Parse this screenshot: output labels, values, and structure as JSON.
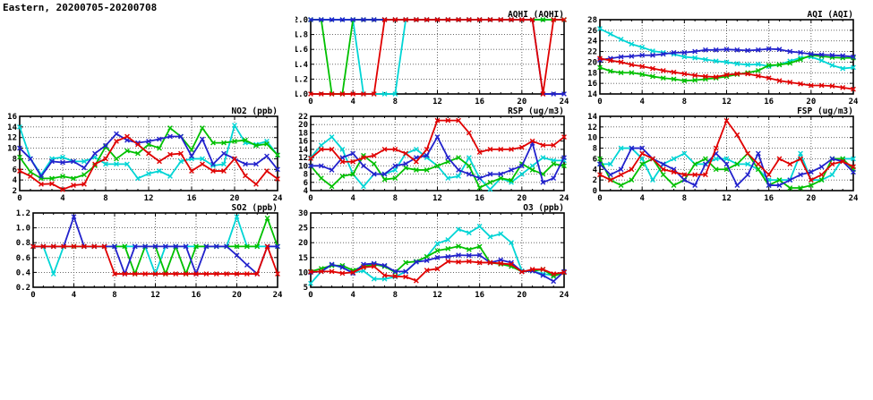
{
  "header": {
    "title": "Eastern, 20200705-20200708"
  },
  "colors": {
    "red": "#e00000",
    "blue": "#2222cc",
    "green": "#00c000",
    "cyan": "#00d5d5"
  },
  "chart_data": [
    {
      "id": "aqhi",
      "type": "line",
      "title": "AQHI (AQHI)",
      "x_range": [
        0,
        24
      ],
      "x_step": 1,
      "x_major_ticks": [
        0,
        4,
        8,
        12,
        16,
        20,
        24
      ],
      "y_range": [
        1.0,
        2.0
      ],
      "y_ticks": [
        1.0,
        1.2,
        1.4,
        1.6,
        1.8,
        2.0
      ],
      "y_tick_labels": [
        "1.0",
        "1.2",
        "1.4",
        "1.6",
        "1.8",
        "2.0"
      ],
      "grid": true,
      "legend": "none",
      "series": [
        {
          "name": "cyan",
          "color": "#00d5d5",
          "values": [
            2,
            2,
            2,
            2,
            2,
            1,
            1,
            1,
            1,
            2,
            2,
            2,
            2,
            2,
            2,
            2,
            2,
            2,
            2,
            2,
            2,
            2,
            2,
            2,
            2
          ]
        },
        {
          "name": "green",
          "color": "#00c000",
          "values": [
            2,
            2,
            1,
            1,
            2,
            2,
            2,
            2,
            2,
            2,
            2,
            2,
            2,
            2,
            2,
            2,
            2,
            2,
            2,
            2,
            2,
            2,
            2,
            2,
            2
          ]
        },
        {
          "name": "blue",
          "color": "#2222cc",
          "values": [
            2,
            2,
            2,
            2,
            2,
            2,
            2,
            2,
            2,
            2,
            2,
            2,
            2,
            2,
            2,
            2,
            2,
            2,
            2,
            2,
            2,
            2,
            1,
            1,
            1
          ]
        },
        {
          "name": "red",
          "color": "#e00000",
          "values": [
            1,
            1,
            1,
            1,
            1,
            1,
            1,
            2,
            2,
            2,
            2,
            2,
            2,
            2,
            2,
            2,
            2,
            2,
            2,
            2,
            2,
            2,
            1,
            2,
            2
          ]
        }
      ]
    },
    {
      "id": "aqi",
      "type": "line",
      "title": "AQI (AQI)",
      "x_range": [
        0,
        24
      ],
      "x_step": 1,
      "x_major_ticks": [
        0,
        4,
        8,
        12,
        16,
        20,
        24
      ],
      "y_range": [
        14,
        28
      ],
      "y_ticks": [
        14,
        16,
        18,
        20,
        22,
        24,
        26,
        28
      ],
      "y_tick_labels": [
        "14",
        "16",
        "18",
        "20",
        "22",
        "24",
        "26",
        "28"
      ],
      "grid": true,
      "legend": "none",
      "series": [
        {
          "name": "cyan",
          "color": "#00d5d5",
          "values": [
            26.3,
            25.3,
            24.3,
            23.4,
            22.8,
            22.1,
            21.8,
            21.5,
            21.0,
            20.8,
            20.5,
            20.2,
            20.0,
            19.7,
            19.5,
            19.6,
            19.2,
            19.5,
            20.2,
            20.8,
            21.0,
            20.3,
            19.4,
            18.8,
            19.0
          ]
        },
        {
          "name": "green",
          "color": "#00c000",
          "values": [
            19.0,
            18.3,
            18.0,
            18.0,
            17.7,
            17.3,
            17.0,
            16.8,
            16.5,
            16.6,
            16.8,
            17.0,
            17.3,
            17.7,
            18.0,
            18.4,
            19.4,
            19.5,
            19.8,
            20.5,
            21.3,
            21.1,
            20.9,
            20.8,
            20.8
          ]
        },
        {
          "name": "blue",
          "color": "#2222cc",
          "values": [
            20.4,
            20.7,
            21.0,
            21.1,
            21.3,
            21.3,
            21.5,
            21.8,
            21.8,
            22.0,
            22.3,
            22.3,
            22.4,
            22.3,
            22.2,
            22.3,
            22.5,
            22.4,
            22.0,
            21.8,
            21.5,
            21.4,
            21.3,
            21.2,
            21.0
          ]
        },
        {
          "name": "red",
          "color": "#e00000",
          "values": [
            20.7,
            20.3,
            20.0,
            19.5,
            19.2,
            18.8,
            18.4,
            18.1,
            17.8,
            17.5,
            17.3,
            17.2,
            17.6,
            17.8,
            17.8,
            17.4,
            17.0,
            16.5,
            16.2,
            15.9,
            15.6,
            15.6,
            15.5,
            15.2,
            14.9
          ]
        }
      ]
    },
    {
      "id": "no2",
      "type": "line",
      "title": "NO2 (ppb)",
      "x_range": [
        0,
        24
      ],
      "x_step": 1,
      "x_major_ticks": [
        0,
        4,
        8,
        12,
        16,
        20,
        24
      ],
      "y_range": [
        2,
        16
      ],
      "y_ticks": [
        2,
        4,
        6,
        8,
        10,
        12,
        14,
        16
      ],
      "y_tick_labels": [
        "2",
        "4",
        "6",
        "8",
        "10",
        "12",
        "14",
        "16"
      ],
      "grid": true,
      "legend": "none",
      "series": [
        {
          "name": "cyan",
          "color": "#00d5d5",
          "values": [
            14,
            8,
            5,
            8,
            8.3,
            7.5,
            7.5,
            8.3,
            7,
            7,
            7,
            4.3,
            5.2,
            5.7,
            4.7,
            7.5,
            8,
            8,
            6.7,
            7,
            14.3,
            11,
            10.7,
            11.3,
            8.7
          ]
        },
        {
          "name": "green",
          "color": "#00c000",
          "values": [
            8.3,
            5.5,
            4.3,
            4.3,
            4.7,
            4.3,
            5,
            6.7,
            10.3,
            8,
            9.5,
            9,
            10.7,
            10,
            13.8,
            12.2,
            9.7,
            13.8,
            11,
            11,
            11.3,
            11.5,
            10.5,
            10.8,
            8.7
          ]
        },
        {
          "name": "blue",
          "color": "#2222cc",
          "values": [
            10,
            8,
            4.7,
            7.5,
            7.3,
            7.5,
            6.3,
            9,
            10.5,
            12.7,
            11.5,
            11,
            11.3,
            11.7,
            12.2,
            12.2,
            8.5,
            11.7,
            7,
            9,
            8,
            7,
            7,
            8.5,
            6
          ]
        },
        {
          "name": "red",
          "color": "#e00000",
          "values": [
            5.7,
            4.7,
            3.2,
            3.3,
            2.2,
            3,
            3.2,
            7,
            8,
            11.3,
            12.2,
            10.7,
            9,
            7.5,
            8.8,
            9,
            5.7,
            7,
            5.7,
            5.7,
            8,
            4.8,
            3.2,
            5.7,
            4.2
          ]
        }
      ]
    },
    {
      "id": "rsp",
      "type": "line",
      "title": "RSP (ug/m3)",
      "x_range": [
        0,
        24
      ],
      "x_step": 1,
      "x_major_ticks": [
        0,
        4,
        8,
        12,
        16,
        20,
        24
      ],
      "y_range": [
        4,
        22
      ],
      "y_ticks": [
        4,
        6,
        8,
        10,
        12,
        14,
        16,
        18,
        20,
        22
      ],
      "y_tick_labels": [
        "4",
        "6",
        "8",
        "10",
        "12",
        "14",
        "16",
        "18",
        "20",
        "22"
      ],
      "grid": true,
      "legend": "none",
      "series": [
        {
          "name": "cyan",
          "color": "#00d5d5",
          "values": [
            12,
            15,
            17,
            14,
            8,
            5,
            8,
            8,
            9,
            13,
            14,
            12,
            10,
            7,
            7.5,
            12,
            7,
            4.3,
            7,
            6,
            8,
            10,
            12,
            11.3,
            11.3
          ]
        },
        {
          "name": "green",
          "color": "#00c000",
          "values": [
            10,
            7,
            5,
            7.5,
            8,
            12.5,
            10.5,
            6.7,
            7,
            9.5,
            9,
            9,
            10,
            11,
            12,
            10,
            4.7,
            6,
            7,
            6.5,
            10.5,
            9,
            8,
            10.5,
            10
          ]
        },
        {
          "name": "blue",
          "color": "#2222cc",
          "values": [
            10,
            10,
            9,
            12,
            13,
            10,
            8,
            8,
            10,
            10.5,
            12,
            12.5,
            17,
            12,
            9,
            8,
            7,
            8,
            8,
            9,
            10,
            15.5,
            6,
            7,
            12
          ]
        },
        {
          "name": "red",
          "color": "#e00000",
          "values": [
            11.8,
            14,
            14,
            11,
            11,
            12,
            12.5,
            14,
            14,
            13,
            11,
            14,
            21,
            21,
            21,
            18,
            13.3,
            14,
            14,
            14,
            14.5,
            16,
            15,
            15,
            17
          ]
        }
      ]
    },
    {
      "id": "fsp",
      "type": "line",
      "title": "FSP (ug/m3)",
      "x_range": [
        0,
        24
      ],
      "x_step": 1,
      "x_major_ticks": [
        0,
        4,
        8,
        12,
        16,
        20,
        24
      ],
      "y_range": [
        0,
        14
      ],
      "y_ticks": [
        0,
        2,
        4,
        6,
        8,
        10,
        12,
        14
      ],
      "y_tick_labels": [
        "0",
        "2",
        "4",
        "6",
        "8",
        "10",
        "12",
        "14"
      ],
      "grid": true,
      "legend": "none",
      "series": [
        {
          "name": "cyan",
          "color": "#00d5d5",
          "values": [
            5,
            5,
            8,
            8,
            6,
            2,
            5,
            6,
            7,
            5,
            5,
            6,
            6,
            5,
            5,
            4,
            2,
            2,
            2,
            7,
            2,
            2,
            3,
            6,
            6
          ]
        },
        {
          "name": "green",
          "color": "#00c000",
          "values": [
            6,
            2,
            1,
            2,
            5,
            6,
            3,
            1,
            2,
            5,
            6,
            4,
            4,
            5,
            7,
            4,
            1,
            2,
            0.5,
            0.5,
            1,
            2,
            6,
            6,
            4
          ]
        },
        {
          "name": "blue",
          "color": "#2222cc",
          "values": [
            5,
            3,
            4,
            8,
            8,
            6,
            5,
            4,
            2,
            1,
            5,
            7,
            5,
            1,
            3,
            7,
            1,
            1,
            2,
            3,
            3.5,
            4.5,
            6,
            5.5,
            3.5
          ]
        },
        {
          "name": "red",
          "color": "#e00000",
          "values": [
            3,
            2,
            3,
            4,
            7,
            6,
            4,
            3.5,
            3,
            3,
            3,
            8,
            13.2,
            10.5,
            7,
            5,
            3,
            6,
            5,
            6,
            2,
            3,
            5,
            5.5,
            4.5
          ]
        }
      ]
    },
    {
      "id": "so2",
      "type": "line",
      "title": "SO2 (ppb)",
      "x_range": [
        0,
        24
      ],
      "x_step": 1,
      "x_major_ticks": [
        0,
        4,
        8,
        12,
        16,
        20,
        24
      ],
      "y_range": [
        0.2,
        1.2
      ],
      "y_ticks": [
        0.2,
        0.4,
        0.6,
        0.8,
        1.0,
        1.2
      ],
      "y_tick_labels": [
        "0.2",
        "0.4",
        "0.6",
        "0.8",
        "1.0",
        "1.2"
      ],
      "grid": true,
      "legend": "none",
      "series": [
        {
          "name": "cyan",
          "color": "#00d5d5",
          "values": [
            0.75,
            0.75,
            0.38,
            0.75,
            0.75,
            0.75,
            0.75,
            0.75,
            0.75,
            0.75,
            0.75,
            0.75,
            0.38,
            0.75,
            0.75,
            0.75,
            0.75,
            0.75,
            0.75,
            0.75,
            1.15,
            0.75,
            0.75,
            0.75,
            0.75
          ]
        },
        {
          "name": "green",
          "color": "#00c000",
          "values": [
            0.75,
            0.75,
            0.75,
            0.75,
            0.75,
            0.75,
            0.75,
            0.75,
            0.75,
            0.75,
            0.38,
            0.75,
            0.75,
            0.38,
            0.75,
            0.38,
            0.75,
            0.75,
            0.75,
            0.75,
            0.75,
            0.75,
            0.75,
            1.13,
            0.75
          ]
        },
        {
          "name": "blue",
          "color": "#2222cc",
          "values": [
            0.75,
            0.75,
            0.75,
            0.75,
            1.15,
            0.75,
            0.75,
            0.75,
            0.75,
            0.38,
            0.75,
            0.75,
            0.75,
            0.75,
            0.75,
            0.75,
            0.38,
            0.75,
            0.75,
            0.75,
            0.63,
            0.5,
            0.38,
            0.75,
            0.75
          ]
        },
        {
          "name": "red",
          "color": "#e00000",
          "values": [
            0.75,
            0.75,
            0.75,
            0.75,
            0.75,
            0.75,
            0.75,
            0.75,
            0.38,
            0.38,
            0.38,
            0.38,
            0.38,
            0.38,
            0.38,
            0.38,
            0.38,
            0.38,
            0.38,
            0.38,
            0.38,
            0.38,
            0.38,
            0.75,
            0.38
          ]
        }
      ]
    },
    {
      "id": "o3",
      "type": "line",
      "title": "O3 (ppb)",
      "x_range": [
        0,
        24
      ],
      "x_step": 1,
      "x_major_ticks": [
        0,
        4,
        8,
        12,
        16,
        20,
        24
      ],
      "y_range": [
        5,
        30
      ],
      "y_ticks": [
        5,
        10,
        15,
        20,
        25,
        30
      ],
      "y_tick_labels": [
        "5",
        "10",
        "15",
        "20",
        "25",
        "30"
      ],
      "grid": true,
      "legend": "none",
      "series": [
        {
          "name": "cyan",
          "color": "#00d5d5",
          "values": [
            6.3,
            10.3,
            12.5,
            11.7,
            10,
            10.5,
            7.8,
            7.8,
            8.5,
            10.3,
            13.5,
            15.3,
            19.7,
            21,
            24.5,
            23.3,
            25.5,
            22,
            23,
            20,
            10.5,
            10.5,
            9.5,
            9,
            10
          ]
        },
        {
          "name": "green",
          "color": "#00c000",
          "values": [
            10.3,
            11.3,
            12.3,
            12.3,
            10.7,
            12,
            12.7,
            12,
            10,
            13.3,
            13.7,
            15.3,
            17.3,
            18,
            18.8,
            17.7,
            18.7,
            13.3,
            12.8,
            12,
            10.3,
            10.5,
            11,
            8.7,
            10
          ]
        },
        {
          "name": "blue",
          "color": "#2222cc",
          "values": [
            10,
            10.3,
            12.7,
            11.7,
            9.7,
            12.7,
            13,
            12.3,
            10.3,
            10.3,
            13.5,
            14,
            15,
            15.3,
            15.8,
            15.7,
            15.8,
            13.3,
            14.2,
            13.3,
            10.3,
            10.5,
            9,
            7,
            10.3
          ]
        },
        {
          "name": "red",
          "color": "#e00000",
          "values": [
            10.2,
            10.3,
            10.3,
            9.7,
            10,
            11.7,
            12,
            9,
            8.7,
            8.5,
            7.2,
            10.7,
            11.2,
            13.7,
            13.5,
            13.7,
            13.3,
            13.3,
            13,
            12.7,
            10.2,
            11,
            11,
            9.5,
            10
          ]
        }
      ]
    }
  ]
}
